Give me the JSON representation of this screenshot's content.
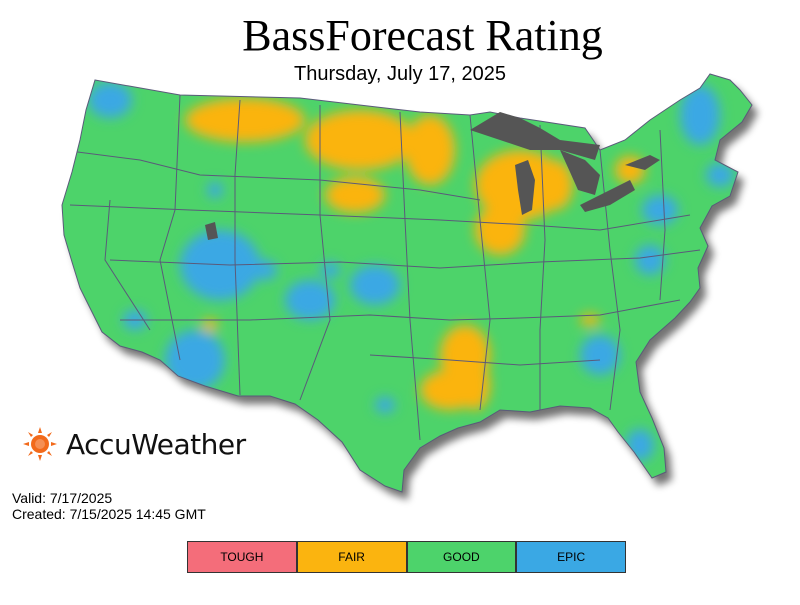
{
  "title": "BassForecast Rating",
  "date": "Thursday, July 17, 2025",
  "brand": "AccuWeather",
  "valid": "Valid: 7/17/2025",
  "created": "Created: 7/15/2025 14:45 GMT",
  "legend": [
    {
      "label": "TOUGH",
      "color": "#f46d7a"
    },
    {
      "label": "FAIR",
      "color": "#fbb40f"
    },
    {
      "label": "GOOD",
      "color": "#4dd36b"
    },
    {
      "label": "EPIC",
      "color": "#3aa8e4"
    }
  ],
  "colors": {
    "water": "#555555",
    "land_good": "#4dd36b",
    "fair": "#fbb40f",
    "epic": "#3aa8e4",
    "border": "#5a5a7a",
    "logo_sun": "#f26a1b"
  }
}
